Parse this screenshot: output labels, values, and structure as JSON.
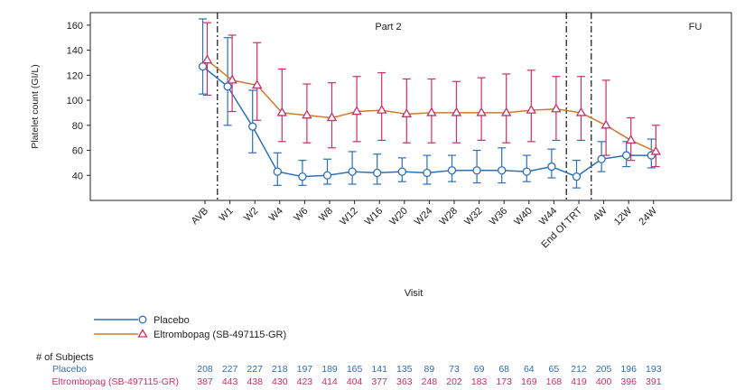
{
  "chart_data": {
    "type": "line",
    "xlabel": "Visit",
    "ylabel": "Platelet count (GI/L)",
    "ylim": [
      20,
      170
    ],
    "yticks": [
      40,
      60,
      80,
      100,
      120,
      140,
      160
    ],
    "categories": [
      "AVB",
      "W1",
      "W2",
      "W4",
      "W6",
      "W8",
      "W12",
      "W16",
      "W20",
      "W24",
      "W28",
      "W32",
      "W36",
      "W40",
      "W44",
      "End Of TRT",
      "4W",
      "12W",
      "24W"
    ],
    "regions": [
      {
        "label": "Part 2"
      },
      {
        "label": "FU"
      }
    ],
    "grid": false,
    "legend_position": "bottom-left",
    "series": [
      {
        "name": "Placebo",
        "color": "#2f6fb3",
        "marker": "circle",
        "values": [
          127,
          111,
          79,
          43,
          39,
          40,
          43,
          42,
          43,
          42,
          44,
          44,
          44,
          43,
          47,
          39,
          53,
          56,
          56
        ],
        "lower": [
          105,
          80,
          58,
          32,
          32,
          33,
          33,
          33,
          35,
          33,
          35,
          34,
          34,
          35,
          38,
          30,
          43,
          47,
          46
        ],
        "upper": [
          165,
          150,
          108,
          58,
          52,
          53,
          59,
          57,
          54,
          56,
          56,
          60,
          62,
          56,
          61,
          52,
          67,
          67,
          69
        ]
      },
      {
        "name": "Eltrombopag (SB-497115-GR)",
        "color": "#d07a2c",
        "marker_color": "#c7306a",
        "marker": "triangle",
        "values": [
          132,
          116,
          112,
          90,
          88,
          86,
          91,
          92,
          89,
          90,
          90,
          90,
          90,
          92,
          93,
          90,
          80,
          68,
          59
        ],
        "lower": [
          104,
          91,
          84,
          67,
          66,
          62,
          67,
          68,
          66,
          66,
          66,
          68,
          66,
          67,
          68,
          68,
          56,
          52,
          47
        ],
        "upper": [
          162,
          152,
          146,
          125,
          113,
          114,
          119,
          122,
          117,
          117,
          115,
          118,
          121,
          124,
          119,
          119,
          116,
          86,
          80
        ]
      }
    ],
    "subjects": {
      "header": "# of Subjects",
      "rows": [
        {
          "label": "Placebo",
          "color": "#2f6fb3",
          "counts": [
            "208",
            "227",
            "227",
            "218",
            "197",
            "189",
            "165",
            "141",
            "135",
            "89",
            "73",
            "69",
            "68",
            "64",
            "65",
            "212",
            "205",
            "196",
            "193"
          ]
        },
        {
          "label": "Eltrombopag (SB-497115-GR)",
          "color": "#c7306a",
          "counts": [
            "387",
            "443",
            "438",
            "430",
            "423",
            "414",
            "404",
            "377",
            "363",
            "248",
            "202",
            "183",
            "173",
            "169",
            "168",
            "419",
            "400",
            "396",
            "391"
          ]
        }
      ]
    }
  }
}
